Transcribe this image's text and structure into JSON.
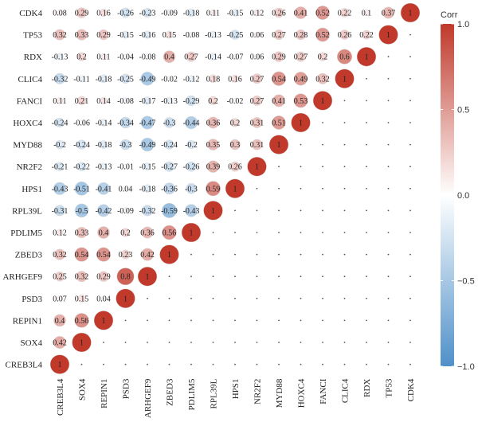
{
  "chart_data": {
    "type": "heatmap",
    "variables": [
      "CREB3L4",
      "SOX4",
      "REPIN1",
      "PSD3",
      "ARHGEF9",
      "ZBED3",
      "PDLIM5",
      "RPL39L",
      "HPS1",
      "NR2F2",
      "MYD88",
      "HOXC4",
      "FANCI",
      "CLIC4",
      "RDX",
      "TP53",
      "CDK4"
    ],
    "matrix": [
      [
        "1"
      ],
      [
        "0.42",
        "1"
      ],
      [
        "0.4",
        "0.56",
        "1"
      ],
      [
        "0.07",
        "0.15",
        "0.04",
        "1"
      ],
      [
        "0.25",
        "0.32",
        "0.29",
        "0.8",
        "1"
      ],
      [
        "0.32",
        "0.54",
        "0.54",
        "0.23",
        "0.42",
        "1"
      ],
      [
        "0.12",
        "0.33",
        "0.4",
        "0.2",
        "0.36",
        "0.56",
        "1"
      ],
      [
        "-0.31",
        "-0.5",
        "-0.42",
        "-0.09",
        "-0.32",
        "-0.59",
        "-0.43",
        "1"
      ],
      [
        "-0.43",
        "-0.51",
        "-0.41",
        "0.04",
        "-0.18",
        "-0.36",
        "-0.3",
        "0.59",
        "1"
      ],
      [
        "-0.21",
        "-0.22",
        "-0.13",
        "-0.01",
        "-0.15",
        "-0.27",
        "-0.26",
        "0.39",
        "0.26",
        "1"
      ],
      [
        "-0.2",
        "-0.24",
        "-0.18",
        "-0.3",
        "-0.49",
        "-0.24",
        "-0.2",
        "0.35",
        "0.3",
        "0.31",
        "1"
      ],
      [
        "-0.24",
        "-0.06",
        "-0.14",
        "-0.34",
        "-0.47",
        "-0.3",
        "-0.44",
        "0.36",
        "0.2",
        "0.31",
        "0.51",
        "1"
      ],
      [
        "0.11",
        "0.21",
        "0.14",
        "-0.08",
        "-0.17",
        "-0.13",
        "-0.29",
        "0.2",
        "-0.02",
        "0.27",
        "0.41",
        "0.53",
        "1"
      ],
      [
        "-0.32",
        "-0.11",
        "-0.18",
        "-0.25",
        "-0.49",
        "-0.02",
        "-0.12",
        "0.18",
        "0.16",
        "0.27",
        "0.54",
        "0.49",
        "0.32",
        "1"
      ],
      [
        "-0.13",
        "0.2",
        "0.11",
        "-0.04",
        "-0.08",
        "0.4",
        "0.27",
        "-0.14",
        "-0.07",
        "0.06",
        "0.29",
        "0.27",
        "0.2",
        "0.6",
        "1"
      ],
      [
        "0.32",
        "0.33",
        "0.29",
        "-0.15",
        "-0.16",
        "0.15",
        "-0.08",
        "-0.13",
        "-0.25",
        "0.06",
        "0.27",
        "0.28",
        "0.52",
        "0.26",
        "0.22",
        "1"
      ],
      [
        "0.08",
        "0.29",
        "0.16",
        "-0.26",
        "-0.23",
        "-0.09",
        "-0.18",
        "0.11",
        "-0.15",
        "0.12",
        "0.26",
        "0.41",
        "0.52",
        "0.22",
        "0.1",
        "0.37",
        "1"
      ]
    ],
    "legend": {
      "title": "Corr",
      "ticks": [
        "1.0",
        "0.5",
        "0.0",
        "−0.5",
        "−1.0"
      ],
      "tick_values": [
        1,
        0.5,
        0,
        -0.5,
        -1
      ],
      "colors": {
        "negative": "#4F90C9",
        "zero": "#FFFFFF",
        "positive": "#C0392B"
      }
    }
  }
}
